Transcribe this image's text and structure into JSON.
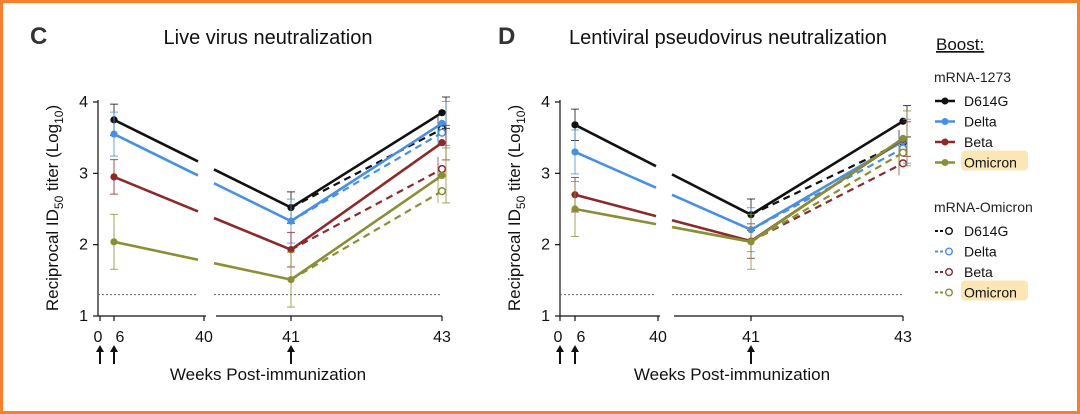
{
  "chart_data": [
    {
      "type": "line",
      "panel": "C",
      "title": "Live virus neutralization",
      "xlabel": "Weeks Post-immunization",
      "ylabel": "Reciprocal ID50 titer (Log10)",
      "ylim": [
        1,
        4
      ],
      "yticks": [
        "1",
        "2",
        "3",
        "4"
      ],
      "xticks": [
        "0",
        "6",
        "40",
        "41",
        "43"
      ],
      "arrows_at": [
        "0",
        "6",
        "41"
      ],
      "dotted_threshold": 1.3,
      "series": [
        {
          "name": "D614G",
          "boost": "mRNA-1273",
          "color": "#111111",
          "dashed": false,
          "x": [
            6,
            41,
            43
          ],
          "values": [
            3.75,
            2.52,
            3.85
          ]
        },
        {
          "name": "Delta",
          "boost": "mRNA-1273",
          "color": "#4a90e2",
          "dashed": false,
          "x": [
            6,
            41,
            43
          ],
          "values": [
            3.55,
            2.33,
            3.7
          ]
        },
        {
          "name": "Beta",
          "boost": "mRNA-1273",
          "color": "#8b2a2a",
          "dashed": false,
          "x": [
            6,
            41,
            43
          ],
          "values": [
            2.95,
            1.93,
            3.43
          ]
        },
        {
          "name": "Omicron",
          "boost": "mRNA-1273",
          "color": "#8a8f35",
          "dashed": false,
          "x": [
            6,
            41,
            43
          ],
          "values": [
            2.04,
            1.51,
            2.97
          ]
        },
        {
          "name": "D614G",
          "boost": "mRNA-Omicron",
          "color": "#111111",
          "dashed": true,
          "x": [
            41,
            43
          ],
          "values": [
            2.52,
            3.62
          ]
        },
        {
          "name": "Delta",
          "boost": "mRNA-Omicron",
          "color": "#4a90e2",
          "dashed": true,
          "x": [
            41,
            43
          ],
          "values": [
            2.33,
            3.57
          ]
        },
        {
          "name": "Beta",
          "boost": "mRNA-Omicron",
          "color": "#8b2a2a",
          "dashed": true,
          "x": [
            41,
            43
          ],
          "values": [
            1.93,
            3.06
          ]
        },
        {
          "name": "Omicron",
          "boost": "mRNA-Omicron",
          "color": "#8a8f35",
          "dashed": true,
          "x": [
            41,
            43
          ],
          "values": [
            1.51,
            2.75
          ]
        }
      ]
    },
    {
      "type": "line",
      "panel": "D",
      "title": "Lentiviral pseudovirus neutralization",
      "xlabel": "Weeks Post-immunization",
      "ylabel": "Reciprocal ID50 titer (Log10)",
      "ylim": [
        1,
        4
      ],
      "yticks": [
        "1",
        "2",
        "3",
        "4"
      ],
      "xticks": [
        "0",
        "6",
        "40",
        "41",
        "43"
      ],
      "arrows_at": [
        "0",
        "6",
        "41"
      ],
      "dotted_threshold": 1.3,
      "series": [
        {
          "name": "D614G",
          "boost": "mRNA-1273",
          "color": "#111111",
          "dashed": false,
          "x": [
            6,
            41,
            43
          ],
          "values": [
            3.68,
            2.42,
            3.73
          ]
        },
        {
          "name": "Delta",
          "boost": "mRNA-1273",
          "color": "#4a90e2",
          "dashed": false,
          "x": [
            6,
            41,
            43
          ],
          "values": [
            3.3,
            2.21,
            3.45
          ]
        },
        {
          "name": "Beta",
          "boost": "mRNA-1273",
          "color": "#8b2a2a",
          "dashed": false,
          "x": [
            6,
            41,
            43
          ],
          "values": [
            2.7,
            2.05,
            3.48
          ]
        },
        {
          "name": "Omicron",
          "boost": "mRNA-1273",
          "color": "#8a8f35",
          "dashed": false,
          "x": [
            6,
            41,
            43
          ],
          "values": [
            2.5,
            2.04,
            3.49
          ]
        },
        {
          "name": "D614G",
          "boost": "mRNA-Omicron",
          "color": "#111111",
          "dashed": true,
          "x": [
            41,
            43
          ],
          "values": [
            2.42,
            3.44
          ]
        },
        {
          "name": "Delta",
          "boost": "mRNA-Omicron",
          "color": "#4a90e2",
          "dashed": true,
          "x": [
            41,
            43
          ],
          "values": [
            2.21,
            3.35
          ]
        },
        {
          "name": "Beta",
          "boost": "mRNA-Omicron",
          "color": "#8b2a2a",
          "dashed": true,
          "x": [
            41,
            43
          ],
          "values": [
            2.05,
            3.14
          ]
        },
        {
          "name": "Omicron",
          "boost": "mRNA-Omicron",
          "color": "#8a8f35",
          "dashed": true,
          "x": [
            41,
            43
          ],
          "values": [
            2.04,
            3.29
          ]
        }
      ]
    }
  ],
  "legend": {
    "heading": "Boost:",
    "groups": [
      {
        "name": "mRNA-1273",
        "style": "solid",
        "items": [
          {
            "label": "D614G",
            "color": "#111111"
          },
          {
            "label": "Delta",
            "color": "#4a90e2"
          },
          {
            "label": "Beta",
            "color": "#8b2a2a"
          },
          {
            "label": "Omicron",
            "color": "#8a8f35",
            "highlight": "#fbe7b5"
          }
        ]
      },
      {
        "name": "mRNA-Omicron",
        "style": "dashed",
        "items": [
          {
            "label": "D614G",
            "color": "#111111"
          },
          {
            "label": "Delta",
            "color": "#4a90e2"
          },
          {
            "label": "Beta",
            "color": "#8b2a2a"
          },
          {
            "label": "Omicron",
            "color": "#8a8f35",
            "highlight": "#fbe7b5"
          }
        ]
      }
    ]
  },
  "colors": {
    "frame": "#f5822a"
  }
}
